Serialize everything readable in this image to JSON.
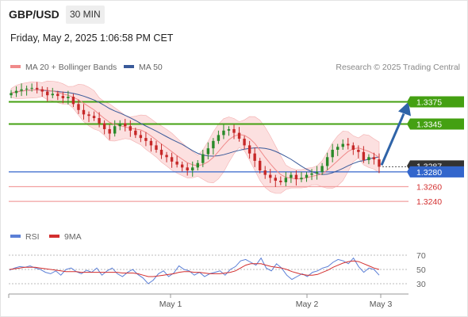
{
  "header": {
    "symbol": "GBP/USD",
    "interval": "30 MIN",
    "datetime": "Friday, May 2, 2025 1:06:58 PM CET"
  },
  "legend": {
    "ma20_label": "MA 20 + Bollinger Bands",
    "ma50_label": "MA 50",
    "credit": "Research © 2025 Trading Central",
    "rsi_label": "RSI",
    "rsi_ma_label": "9MA"
  },
  "colors": {
    "ma20": "#f08a8a",
    "ma50": "#3a5a9a",
    "band_fill": "#fbd5d5",
    "candle_up": "#2a8a2a",
    "candle_down": "#c62828",
    "resistance": "#44a012",
    "pivot": "#3366cc",
    "support": "#f2a0a0",
    "support_text": "#d32f2f",
    "arrow": "#2f64a8",
    "rsi": "#5b7fd6",
    "rsi_ma": "#d32f2f"
  },
  "chart_data": [
    {
      "type": "candlestick",
      "title": "GBP/USD",
      "x_labels": [
        "May 1",
        "May 2",
        "May 3"
      ],
      "ylim": [
        1.321,
        1.341
      ],
      "current_price": "1.3287",
      "levels": [
        {
          "value": 1.3375,
          "label": "1.3375",
          "kind": "resistance"
        },
        {
          "value": 1.3345,
          "label": "1.3345",
          "kind": "resistance"
        },
        {
          "value": 1.328,
          "label": "1.3280",
          "kind": "pivot"
        },
        {
          "value": 1.326,
          "label": "1.3260",
          "kind": "support"
        },
        {
          "value": 1.324,
          "label": "1.3240",
          "kind": "support"
        }
      ],
      "price_path": [
        1.3387,
        1.339,
        1.3392,
        1.3393,
        1.3394,
        1.3392,
        1.3389,
        1.3384,
        1.3386,
        1.3383,
        1.338,
        1.3382,
        1.3372,
        1.3364,
        1.3358,
        1.3356,
        1.3353,
        1.3346,
        1.3338,
        1.3332,
        1.3342,
        1.3346,
        1.3342,
        1.3336,
        1.333,
        1.3326,
        1.3322,
        1.3316,
        1.331,
        1.3303,
        1.33,
        1.3294,
        1.329,
        1.3286,
        1.3282,
        1.3286,
        1.3292,
        1.3304,
        1.3312,
        1.3322,
        1.333,
        1.3336,
        1.3338,
        1.3333,
        1.3325,
        1.3316,
        1.3305,
        1.3295,
        1.3282,
        1.3276,
        1.3272,
        1.3268,
        1.3266,
        1.3272,
        1.3276,
        1.327,
        1.3272,
        1.3276,
        1.3278,
        1.328,
        1.3288,
        1.33,
        1.331,
        1.3314,
        1.3318,
        1.3316,
        1.331,
        1.3307,
        1.3296,
        1.33,
        1.3297,
        1.3287
      ],
      "arrow": {
        "from": 1.3287,
        "to": 1.3375,
        "direction": "up"
      }
    },
    {
      "type": "line",
      "title": "RSI",
      "yticks": [
        70,
        50,
        30
      ],
      "series": [
        {
          "name": "RSI",
          "values": [
            49,
            52,
            54,
            53,
            55,
            52,
            50,
            46,
            44,
            48,
            42,
            50,
            52,
            47,
            44,
            49,
            46,
            52,
            42,
            48,
            52,
            44,
            40,
            46,
            50,
            43,
            38,
            30,
            35,
            44,
            48,
            40,
            45,
            55,
            50,
            48,
            42,
            46,
            40,
            44,
            46,
            48,
            42,
            50,
            54,
            62,
            64,
            60,
            56,
            66,
            52,
            48,
            58,
            52,
            42,
            36,
            40,
            44,
            40,
            46,
            48,
            52,
            54,
            60,
            64,
            62,
            58,
            66,
            54,
            46,
            52,
            50,
            42
          ]
        },
        {
          "name": "9MA",
          "values": [
            50,
            51,
            52,
            53,
            53,
            53,
            52,
            51,
            50,
            49,
            48,
            47,
            47,
            47,
            46,
            46,
            46,
            46,
            46,
            46,
            46,
            46,
            45,
            45,
            45,
            44,
            42,
            40,
            40,
            41,
            42,
            43,
            44,
            46,
            47,
            47,
            46,
            46,
            45,
            44,
            44,
            44,
            45,
            46,
            48,
            52,
            56,
            58,
            58,
            58,
            56,
            54,
            53,
            52,
            50,
            47,
            45,
            43,
            42,
            42,
            43,
            46,
            49,
            53,
            56,
            59,
            61,
            62,
            61,
            58,
            55,
            52,
            50
          ]
        }
      ]
    }
  ]
}
